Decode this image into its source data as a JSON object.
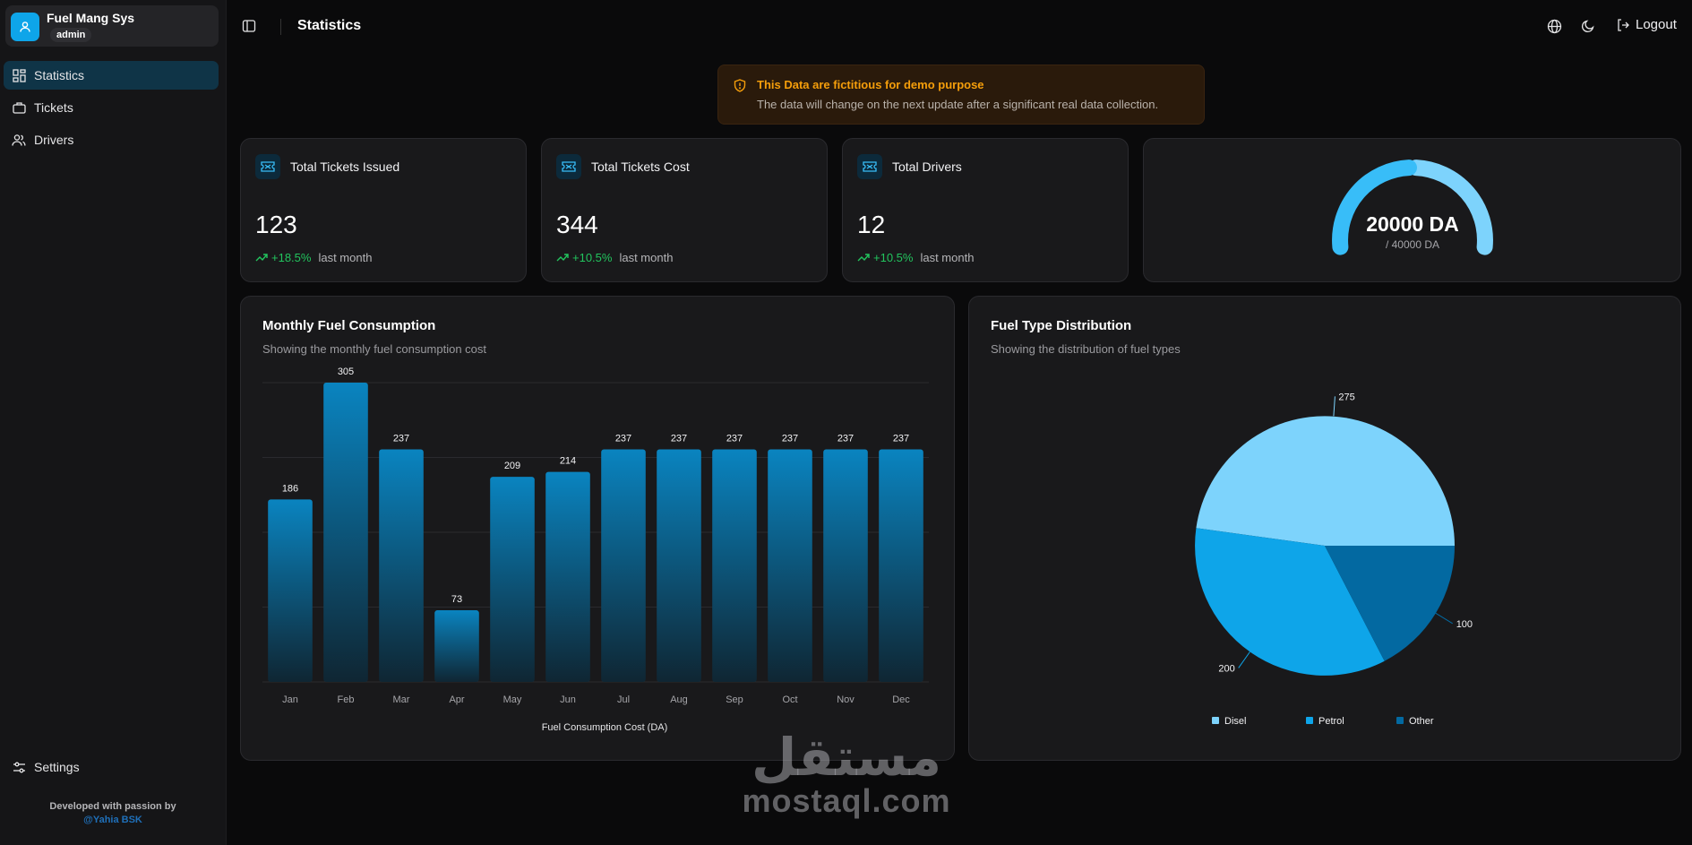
{
  "app": {
    "title": "Fuel Mang Sys",
    "role": "admin"
  },
  "sidebar": {
    "items": [
      {
        "label": "Statistics",
        "icon": "dashboard-grid-icon",
        "active": true
      },
      {
        "label": "Tickets",
        "icon": "ticket-icon",
        "active": false
      },
      {
        "label": "Drivers",
        "icon": "users-icon",
        "active": false
      }
    ],
    "settings": {
      "label": "Settings",
      "icon": "sliders-icon"
    },
    "credits": {
      "line1": "Developed with passion by",
      "line2": "@Yahia BSK"
    }
  },
  "header": {
    "title": "Statistics",
    "logout_label": "Logout",
    "icons": [
      "sidebar-toggle-icon",
      "globe-icon",
      "moon-icon",
      "logout-icon"
    ]
  },
  "alert": {
    "title": "This Data are fictitious for demo purpose",
    "text": "The data will change on the next update after a significant real data collection."
  },
  "stats": [
    {
      "label": "Total Tickets Issued",
      "value": "123",
      "trend": "+18.5%",
      "period": "last month"
    },
    {
      "label": "Total Tickets Cost",
      "value": "344",
      "trend": "+10.5%",
      "period": "last month"
    },
    {
      "label": "Total Drivers",
      "value": "12",
      "trend": "+10.5%",
      "period": "last month"
    }
  ],
  "gauge": {
    "value_label": "20000 DA",
    "total_label": "/ 40000 DA",
    "value": 20000,
    "max": 40000
  },
  "chart_data": [
    {
      "type": "bar",
      "title": "Monthly Fuel Consumption",
      "subtitle": "Showing the monthly fuel consumption cost",
      "xlabel": "Fuel Consumption Cost (DA)",
      "categories": [
        "Jan",
        "Feb",
        "Mar",
        "Apr",
        "May",
        "Jun",
        "Jul",
        "Aug",
        "Sep",
        "Oct",
        "Nov",
        "Dec"
      ],
      "values": [
        186,
        305,
        237,
        73,
        209,
        214,
        237,
        237,
        237,
        237,
        237,
        237
      ],
      "ylim": [
        0,
        305
      ],
      "grid": true,
      "color": "#0a84c0"
    },
    {
      "type": "pie",
      "title": "Fuel Type Distribution",
      "subtitle": "Showing the distribution of fuel types",
      "labels": [
        "Disel",
        "Petrol",
        "Other"
      ],
      "values": [
        275,
        200,
        100
      ],
      "colors": [
        "#7dd3fc",
        "#0ea5e9",
        "#0369a1"
      ],
      "legend": "bottom"
    }
  ],
  "watermark": {
    "arabic": "مستقل",
    "latin": "mostaql.com"
  }
}
